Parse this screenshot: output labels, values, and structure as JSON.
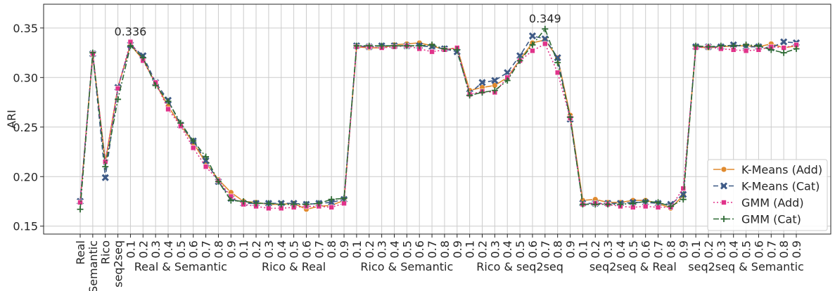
{
  "chart_data": {
    "type": "line",
    "ylabel": "ARI",
    "xlabel": "",
    "ylim": [
      0.142,
      0.374
    ],
    "yticks": [
      "0.15",
      "0.20",
      "0.25",
      "0.30",
      "0.35"
    ],
    "grid": true,
    "legend_position": "bottom-right",
    "x_tick_labels": [
      "Real",
      "Semantic",
      "Rico",
      "seq2seq",
      "0.1",
      "0.2",
      "0.3",
      "0.4",
      "0.5",
      "0.6",
      "0.7",
      "0.8",
      "0.9",
      "0.1",
      "0.2",
      "0.3",
      "0.4",
      "0.5",
      "0.6",
      "0.7",
      "0.8",
      "0.9",
      "0.1",
      "0.2",
      "0.3",
      "0.4",
      "0.5",
      "0.6",
      "0.7",
      "0.8",
      "0.9",
      "0.1",
      "0.2",
      "0.3",
      "0.4",
      "0.5",
      "0.6",
      "0.7",
      "0.8",
      "0.9",
      "0.1",
      "0.2",
      "0.3",
      "0.4",
      "0.5",
      "0.6",
      "0.7",
      "0.8",
      "0.9",
      "0.1",
      "0.2",
      "0.3",
      "0.4",
      "0.5",
      "0.6",
      "0.7",
      "0.8",
      "0.9"
    ],
    "groups": [
      {
        "label": "Real & Semantic",
        "start": 4,
        "end": 12
      },
      {
        "label": "Rico & Real",
        "start": 13,
        "end": 21
      },
      {
        "label": "Rico & Semantic",
        "start": 22,
        "end": 30
      },
      {
        "label": "Rico & seq2seq",
        "start": 31,
        "end": 39
      },
      {
        "label": "seq2seq & Real",
        "start": 40,
        "end": 48
      },
      {
        "label": "seq2seq & Semantic",
        "start": 49,
        "end": 57
      }
    ],
    "annotations": [
      {
        "text": "0.336",
        "index": 4,
        "value": 0.336
      },
      {
        "text": "0.349",
        "index": 37,
        "value": 0.349
      }
    ],
    "series": [
      {
        "name": "K-Means (Add)",
        "color": "#e08a2e",
        "marker": "circle",
        "dash": "solid",
        "values": [
          0.174,
          0.323,
          0.215,
          0.29,
          0.333,
          0.318,
          0.294,
          0.271,
          0.252,
          0.234,
          0.214,
          0.197,
          0.184,
          0.175,
          0.174,
          0.172,
          0.172,
          0.173,
          0.167,
          0.17,
          0.171,
          0.176,
          0.331,
          0.33,
          0.33,
          0.333,
          0.334,
          0.335,
          0.332,
          0.328,
          0.33,
          0.287,
          0.29,
          0.292,
          0.3,
          0.318,
          0.335,
          0.338,
          0.32,
          0.262,
          0.176,
          0.177,
          0.174,
          0.174,
          0.176,
          0.176,
          0.173,
          0.168,
          0.181,
          0.331,
          0.33,
          0.331,
          0.332,
          0.332,
          0.331,
          0.334,
          0.33,
          0.332
        ]
      },
      {
        "name": "K-Means (Cat)",
        "color": "#3e5a86",
        "marker": "x",
        "dash": "dashed",
        "values": [
          0.175,
          0.324,
          0.199,
          0.29,
          0.333,
          0.322,
          0.295,
          0.277,
          0.252,
          0.236,
          0.216,
          0.195,
          0.178,
          0.173,
          0.173,
          0.173,
          0.173,
          0.173,
          0.172,
          0.173,
          0.174,
          0.177,
          0.332,
          0.331,
          0.332,
          0.332,
          0.332,
          0.332,
          0.331,
          0.329,
          0.326,
          0.284,
          0.295,
          0.297,
          0.305,
          0.322,
          0.342,
          0.339,
          0.32,
          0.258,
          0.173,
          0.173,
          0.173,
          0.173,
          0.174,
          0.174,
          0.173,
          0.172,
          0.182,
          0.331,
          0.331,
          0.331,
          0.333,
          0.331,
          0.331,
          0.33,
          0.336,
          0.335
        ]
      },
      {
        "name": "GMM (Add)",
        "color": "#e0338a",
        "marker": "square",
        "dash": "dotted",
        "values": [
          0.174,
          0.324,
          0.215,
          0.289,
          0.336,
          0.317,
          0.295,
          0.268,
          0.251,
          0.229,
          0.21,
          0.196,
          0.18,
          0.172,
          0.17,
          0.168,
          0.168,
          0.169,
          0.17,
          0.17,
          0.169,
          0.173,
          0.331,
          0.331,
          0.33,
          0.331,
          0.332,
          0.329,
          0.326,
          0.328,
          0.33,
          0.283,
          0.286,
          0.285,
          0.3,
          0.317,
          0.327,
          0.334,
          0.305,
          0.259,
          0.172,
          0.173,
          0.172,
          0.17,
          0.169,
          0.17,
          0.169,
          0.169,
          0.188,
          0.33,
          0.331,
          0.329,
          0.328,
          0.327,
          0.328,
          0.331,
          0.33,
          0.333
        ]
      },
      {
        "name": "GMM (Cat)",
        "color": "#2e6a34",
        "marker": "plus",
        "dash": "dashdot",
        "values": [
          0.167,
          0.325,
          0.21,
          0.278,
          0.332,
          0.32,
          0.292,
          0.276,
          0.254,
          0.236,
          0.22,
          0.195,
          0.176,
          0.175,
          0.173,
          0.173,
          0.172,
          0.172,
          0.172,
          0.173,
          0.177,
          0.178,
          0.332,
          0.332,
          0.332,
          0.332,
          0.332,
          0.332,
          0.333,
          0.329,
          0.328,
          0.282,
          0.285,
          0.287,
          0.297,
          0.317,
          0.333,
          0.349,
          0.315,
          0.26,
          0.172,
          0.172,
          0.172,
          0.172,
          0.173,
          0.175,
          0.174,
          0.17,
          0.177,
          0.332,
          0.331,
          0.332,
          0.332,
          0.333,
          0.332,
          0.328,
          0.325,
          0.329
        ]
      }
    ]
  }
}
